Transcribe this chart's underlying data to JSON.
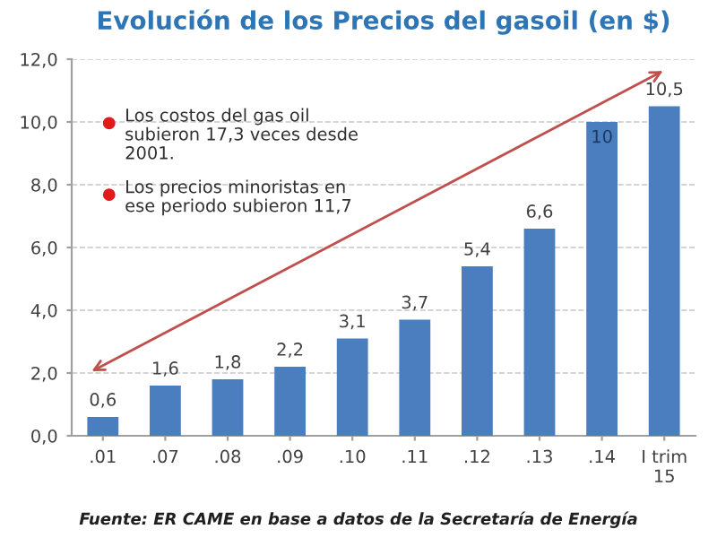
{
  "chart_data": {
    "type": "bar",
    "title": "Evolución de los Precios del gasoil (en $)",
    "categories": [
      ".01",
      ".07",
      ".08",
      ".09",
      ".10",
      ".11",
      ".12",
      ".13",
      ".14",
      "I trim\n15"
    ],
    "values": [
      0.6,
      1.6,
      1.8,
      2.2,
      3.1,
      3.7,
      5.4,
      6.6,
      10,
      10.5
    ],
    "value_labels": [
      "0,6",
      "1,6",
      "1,8",
      "2,2",
      "3,1",
      "3,7",
      "5,4",
      "6,6",
      "10",
      "10,5"
    ],
    "color": "#4a7ebf",
    "ylim": [
      0,
      12
    ],
    "yticks": [
      {
        "value": 0,
        "label": "0,0"
      },
      {
        "value": 2,
        "label": "2,0"
      },
      {
        "value": 4,
        "label": "4,0"
      },
      {
        "value": 6,
        "label": "6,0"
      },
      {
        "value": 8,
        "label": "8,0"
      },
      {
        "value": 10,
        "label": "10,0"
      },
      {
        "value": 12,
        "label": "12,0"
      }
    ],
    "grid": "y",
    "annotations": [
      "Los costos del gas oil\nsubieron 17,3 veces desde\n2001.",
      "Los precios minoristas en\nese periodo subieron 11,7",
      "Fuente: ER CAME en base a datos de la Secretaría de Energía"
    ]
  }
}
